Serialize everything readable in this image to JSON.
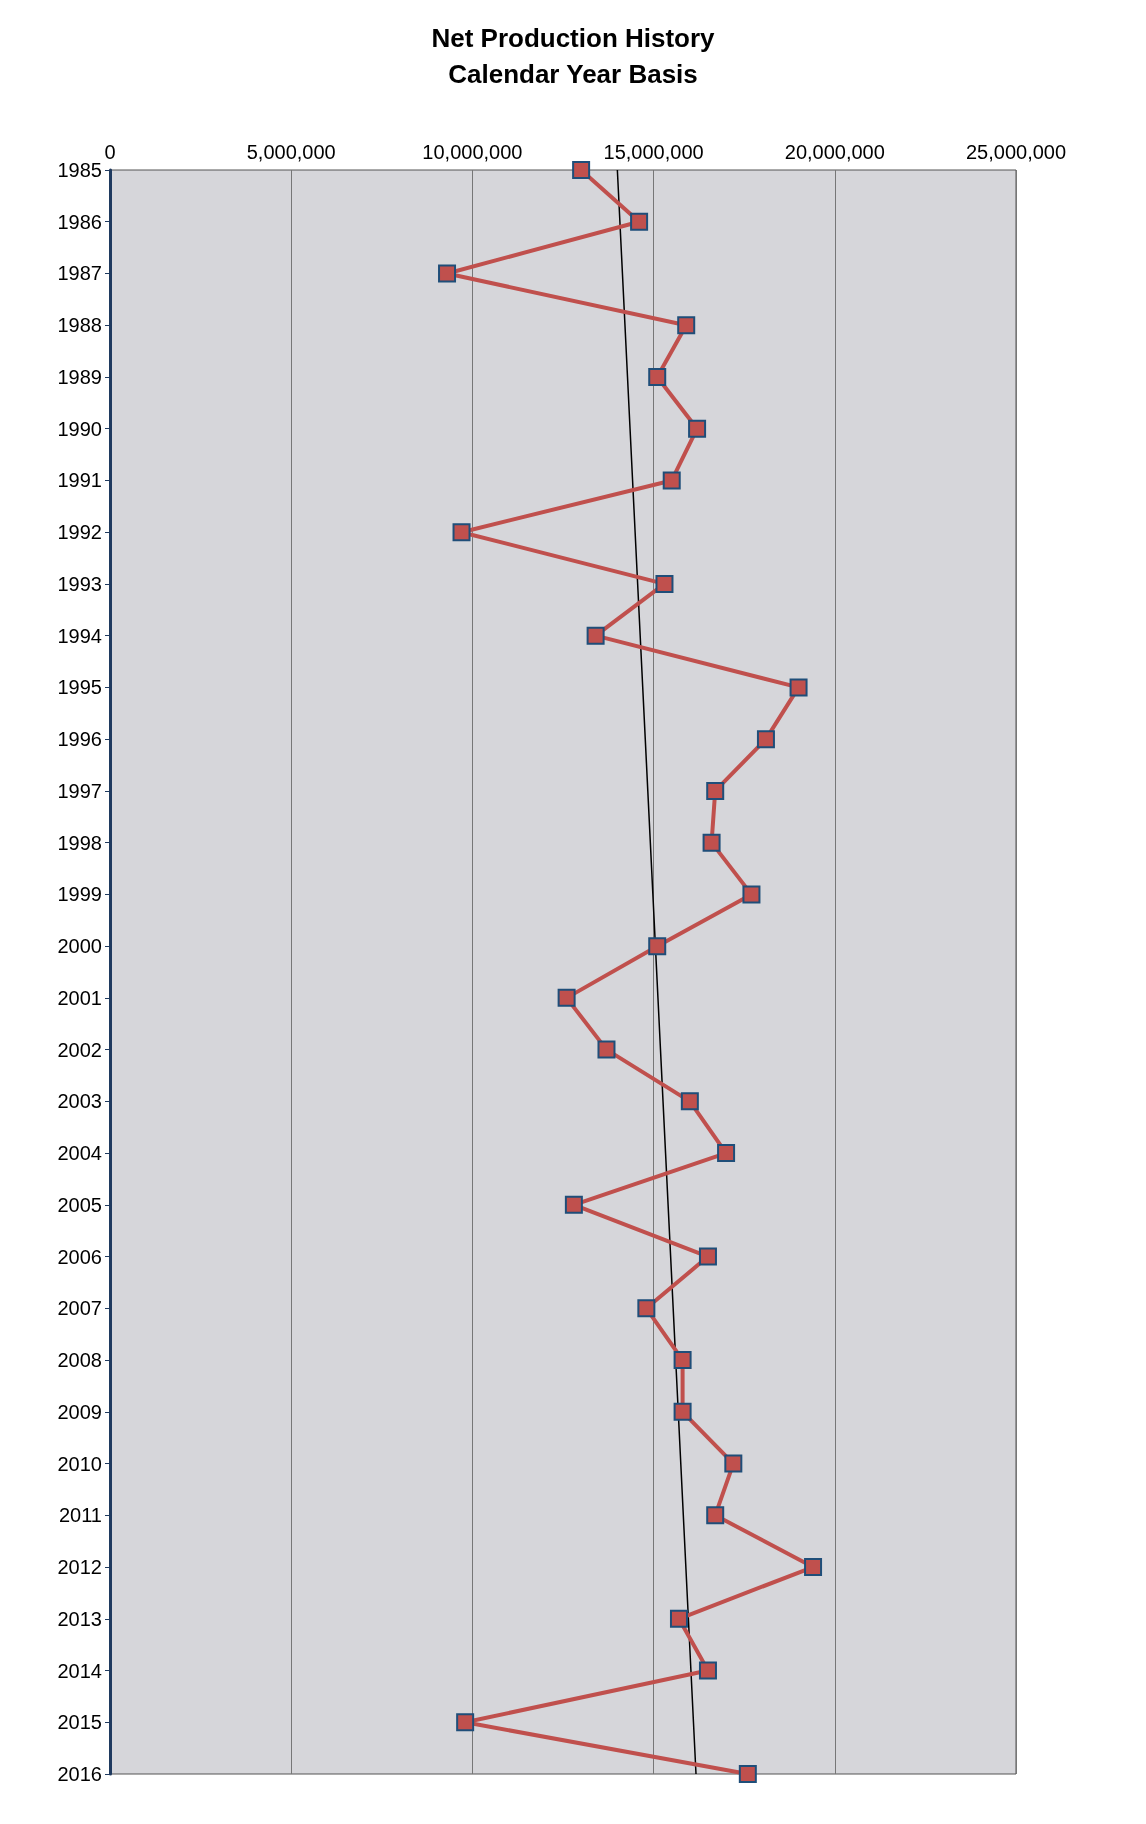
{
  "chart_data": {
    "type": "line",
    "title": "Net Production History",
    "subtitle": "Calendar Year Basis",
    "orientation": "horizontal",
    "categories": [
      "1985",
      "1986",
      "1987",
      "1988",
      "1989",
      "1990",
      "1991",
      "1992",
      "1993",
      "1994",
      "1995",
      "1996",
      "1997",
      "1998",
      "1999",
      "2000",
      "2001",
      "2002",
      "2003",
      "2004",
      "2005",
      "2006",
      "2007",
      "2008",
      "2009",
      "2010",
      "2011",
      "2012",
      "2013",
      "2014",
      "2015",
      "2016"
    ],
    "series": [
      {
        "color": "#c0504d",
        "marker": "square",
        "values": [
          13000000,
          14600000,
          9300000,
          15900000,
          15100000,
          16200000,
          15500000,
          9700000,
          15300000,
          13400000,
          19000000,
          18100000,
          16700000,
          16600000,
          17700000,
          15100000,
          12600000,
          13700000,
          16000000,
          17000000,
          12800000,
          16500000,
          14800000,
          15800000,
          15800000,
          17200000,
          16700000,
          19400000,
          15700000,
          16500000,
          9800000,
          17600000
        ]
      },
      {
        "type": "line",
        "color": "#000000",
        "marker": "none",
        "values": [
          14000000,
          14070000,
          14140000,
          14210000,
          14280000,
          14350000,
          14420000,
          14490000,
          14560000,
          14630000,
          14700000,
          14770000,
          14840000,
          14910000,
          14980000,
          15050000,
          15120000,
          15190000,
          15260000,
          15330000,
          15400000,
          15470000,
          15540000,
          15610000,
          15680000,
          15750000,
          15820000,
          15890000,
          15960000,
          16030000,
          16100000,
          16170000
        ]
      }
    ],
    "xlim": [
      0,
      25000000
    ],
    "xticks": [
      {
        "value": 0,
        "label": "0"
      },
      {
        "value": 5000000,
        "label": "5,000,000"
      },
      {
        "value": 10000000,
        "label": "10,000,000"
      },
      {
        "value": 15000000,
        "label": "15,000,000"
      },
      {
        "value": 20000000,
        "label": "20,000,000"
      },
      {
        "value": 25000000,
        "label": "25,000,000"
      }
    ],
    "grid": "x"
  }
}
